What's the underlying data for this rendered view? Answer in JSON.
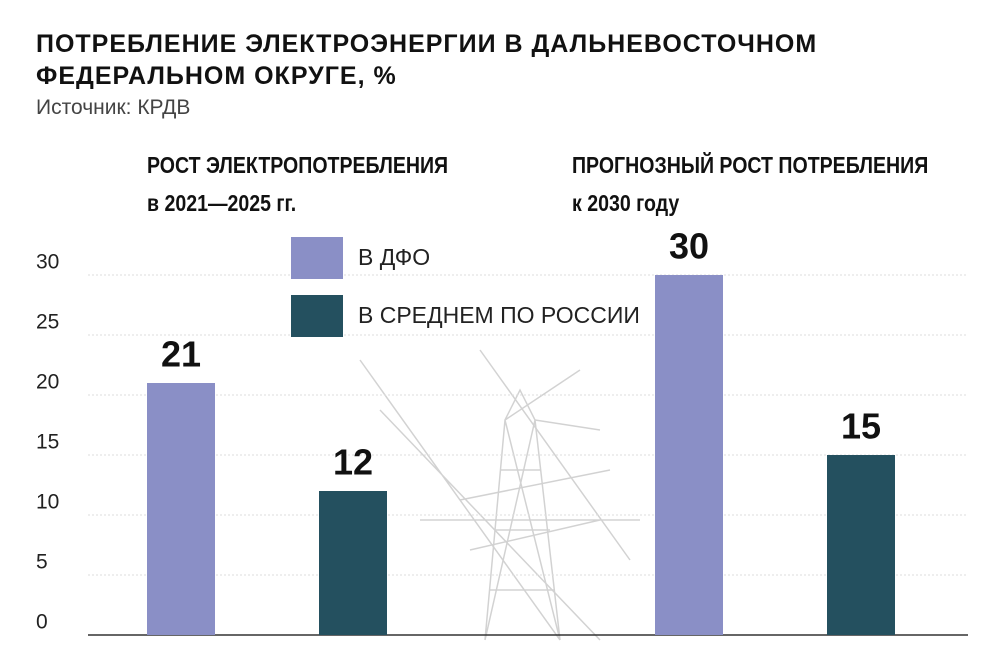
{
  "chart_data": {
    "type": "bar",
    "title": "ПОТРЕБЛЕНИЕ ЭЛЕКТРОЭНЕРГИИ В ДАЛЬНЕВОСТОЧНОМ\nФЕДЕРАЛЬНОМ ОКРУГЕ, %",
    "subtitle": "Источник: КРДВ",
    "categories": [
      "РОСТ ЭЛЕКТРОПОТРЕБЛЕНИЯ\nв 2021—2025 гг.",
      "ПРОГНОЗНЫЙ РОСТ ПОТРЕБЛЕНИЯ\nк 2030 году"
    ],
    "series": [
      {
        "name": "В ДФО",
        "color": "#8a8fc6",
        "values": [
          21,
          30
        ]
      },
      {
        "name": "В СРЕДНЕМ ПО РОССИИ",
        "color": "#24505f",
        "values": [
          12,
          15
        ]
      }
    ],
    "ylim": [
      0,
      30
    ],
    "yticks": [
      0,
      5,
      10,
      15,
      20,
      25,
      30
    ],
    "grid": true
  }
}
